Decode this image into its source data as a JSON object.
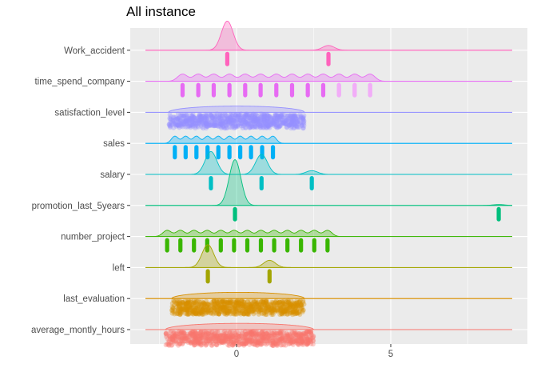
{
  "chart_data": {
    "type": "ridgeline",
    "title": "All instance",
    "xlabel": "",
    "ylabel": "",
    "xlim": [
      -3.4,
      9.2
    ],
    "x_ticks": [
      0,
      5
    ],
    "grid": true,
    "legend": "none",
    "categories": [
      "average_montly_hours",
      "last_evaluation",
      "left",
      "number_project",
      "promotion_last_5years",
      "salary",
      "sales",
      "satisfaction_level",
      "time_spend_company",
      "Work_accident"
    ],
    "series": [
      {
        "category": "average_montly_hours",
        "color": "#F8766D",
        "kind": "continuous",
        "range": [
          -2.3,
          2.5
        ],
        "density_peak": 0.3
      },
      {
        "category": "last_evaluation",
        "color": "#D89000",
        "kind": "continuous",
        "range": [
          -2.1,
          2.2
        ],
        "density_peak": 0.3
      },
      {
        "category": "left",
        "color": "#A3A500",
        "kind": "discrete",
        "points": [
          -0.93,
          1.07
        ],
        "weights": [
          0.76,
          0.24
        ],
        "density_peak": 1.1
      },
      {
        "category": "number_project",
        "color": "#39B600",
        "kind": "discrete",
        "points": [
          -2.25,
          -1.82,
          -1.38,
          -0.95,
          -0.51,
          -0.08,
          0.35,
          0.79,
          1.22,
          1.65,
          2.09,
          2.52,
          2.95
        ],
        "density_peak": 0.3
      },
      {
        "category": "promotion_last_5years",
        "color": "#00BF7D",
        "kind": "discrete",
        "points": [
          -0.05,
          8.5
        ],
        "weights": [
          0.98,
          0.02
        ],
        "density_peak": 2.2
      },
      {
        "category": "salary",
        "color": "#00BFC4",
        "kind": "discrete",
        "points": [
          -0.83,
          0.81,
          2.44
        ],
        "weights": [
          0.49,
          0.43,
          0.08
        ],
        "density_peak": 1.1
      },
      {
        "category": "sales",
        "color": "#00B0F6",
        "kind": "discrete",
        "points": [
          -2.0,
          -1.65,
          -1.3,
          -0.94,
          -0.59,
          -0.23,
          0.12,
          0.47,
          0.83,
          1.18
        ],
        "density_peak": 0.35
      },
      {
        "category": "satisfaction_level",
        "color": "#9590FF",
        "kind": "continuous",
        "range": [
          -2.2,
          2.2
        ],
        "density_peak": 0.3
      },
      {
        "category": "time_spend_company",
        "color": "#E76BF3",
        "kind": "discrete",
        "points": [
          -1.75,
          -1.24,
          -0.74,
          -0.23,
          0.28,
          0.78,
          1.29,
          1.8,
          2.31,
          2.81,
          3.32,
          3.83,
          4.33
        ],
        "density_peak": 0.35
      },
      {
        "category": "Work_accident",
        "color": "#FF62BC",
        "kind": "discrete",
        "points": [
          -0.3,
          2.98
        ],
        "weights": [
          0.86,
          0.14
        ],
        "density_peak": 1.4
      }
    ]
  }
}
